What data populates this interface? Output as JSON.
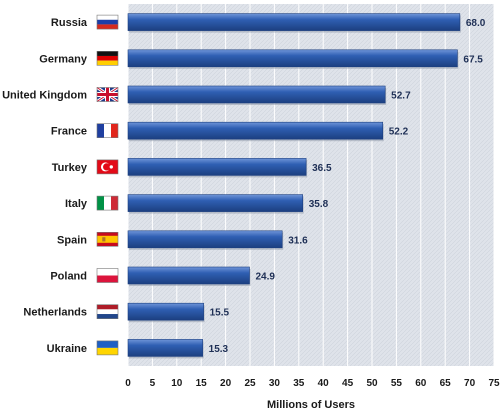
{
  "chart_data": {
    "type": "bar",
    "orientation": "horizontal",
    "categories": [
      "Russia",
      "Germany",
      "United Kingdom",
      "France",
      "Turkey",
      "Italy",
      "Spain",
      "Poland",
      "Netherlands",
      "Ukraine"
    ],
    "values": [
      68.0,
      67.5,
      52.7,
      52.2,
      36.5,
      35.8,
      31.6,
      24.9,
      15.5,
      15.3
    ],
    "value_labels": [
      "68.0",
      "67.5",
      "52.7",
      "52.2",
      "36.5",
      "35.8",
      "31.6",
      "24.9",
      "15.5",
      "15.3"
    ],
    "flag_icons": [
      "flag-russia-icon",
      "flag-germany-icon",
      "flag-united-kingdom-icon",
      "flag-france-icon",
      "flag-turkey-icon",
      "flag-italy-icon",
      "flag-spain-icon",
      "flag-poland-icon",
      "flag-netherlands-icon",
      "flag-ukraine-icon"
    ],
    "title": "",
    "xlabel": "Millions of Users",
    "ylabel": "",
    "xlim": [
      0,
      75
    ],
    "xticks": [
      "0",
      "5",
      "10",
      "15",
      "20",
      "25",
      "30",
      "35",
      "40",
      "45",
      "50",
      "55",
      "60",
      "65",
      "70",
      "75"
    ],
    "grid": true,
    "colors": {
      "bar": "#2f5fb3",
      "bar_light": "#6f95d8",
      "bar_dark": "#1c3f80",
      "plot_background": "#dfe3ea",
      "grid": "#ffffff"
    }
  }
}
